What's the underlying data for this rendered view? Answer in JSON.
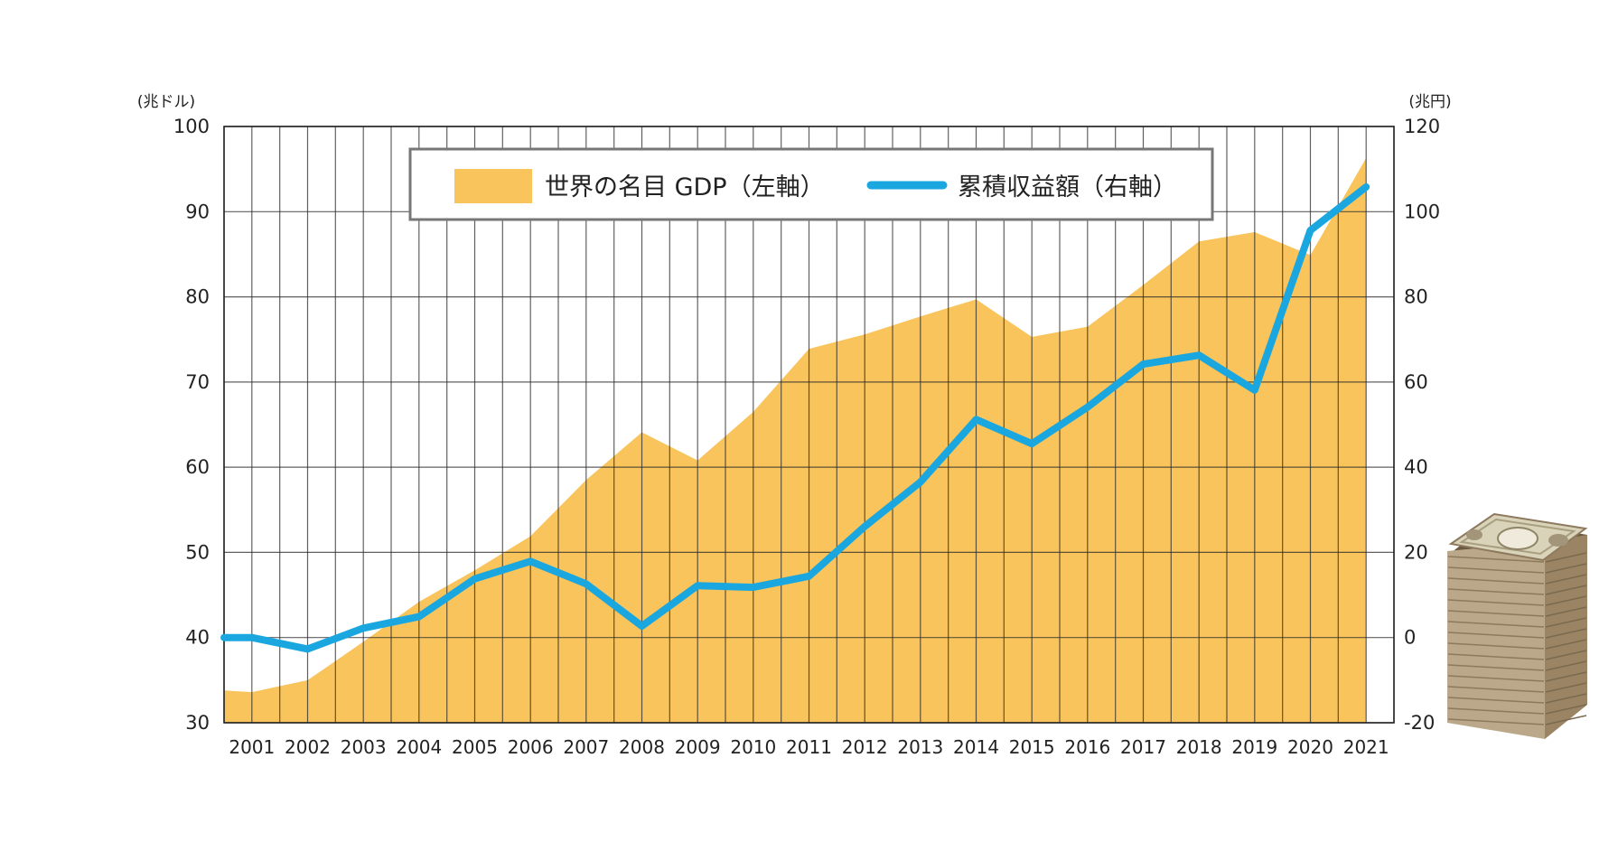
{
  "chart_data": {
    "type": "area+line",
    "x_categories": [
      "2001",
      "2002",
      "2003",
      "2004",
      "2005",
      "2006",
      "2007",
      "2008",
      "2009",
      "2010",
      "2011",
      "2012",
      "2013",
      "2014",
      "2015",
      "2016",
      "2017",
      "2018",
      "2019",
      "2020",
      "2021"
    ],
    "left_axis": {
      "unit_label": "(兆ドル)",
      "min": 30,
      "max": 100,
      "ticks": [
        30,
        40,
        50,
        60,
        70,
        80,
        90,
        100
      ]
    },
    "right_axis": {
      "unit_label": "(兆円)",
      "min": -20,
      "max": 120,
      "ticks": [
        -20,
        0,
        20,
        40,
        60,
        80,
        100,
        120
      ]
    },
    "grid": true,
    "legend": {
      "placement": "top-center",
      "gdp_label": "世界の名目 GDP（左軸）",
      "profit_label": "累積収益額（右軸）"
    },
    "series": [
      {
        "name": "世界の名目 GDP（左軸）",
        "type": "area",
        "axis": "left",
        "color": "#F8C45B",
        "points": [
          {
            "x": 2000.5,
            "y": 33.8
          },
          {
            "x": 2001.0,
            "y": 33.6
          },
          {
            "x": 2002.0,
            "y": 35.0
          },
          {
            "x": 2003.0,
            "y": 39.5
          },
          {
            "x": 2004.0,
            "y": 44.2
          },
          {
            "x": 2005.0,
            "y": 47.9
          },
          {
            "x": 2006.0,
            "y": 51.9
          },
          {
            "x": 2007.0,
            "y": 58.5
          },
          {
            "x": 2008.0,
            "y": 64.1
          },
          {
            "x": 2009.0,
            "y": 60.8
          },
          {
            "x": 2010.0,
            "y": 66.5
          },
          {
            "x": 2011.0,
            "y": 73.9
          },
          {
            "x": 2012.0,
            "y": 75.6
          },
          {
            "x": 2013.0,
            "y": 77.7
          },
          {
            "x": 2014.0,
            "y": 79.7
          },
          {
            "x": 2015.0,
            "y": 75.3
          },
          {
            "x": 2016.0,
            "y": 76.5
          },
          {
            "x": 2017.0,
            "y": 81.4
          },
          {
            "x": 2018.0,
            "y": 86.5
          },
          {
            "x": 2019.0,
            "y": 87.6
          },
          {
            "x": 2020.0,
            "y": 84.9
          },
          {
            "x": 2021.0,
            "y": 96.3
          }
        ]
      },
      {
        "name": "累積収益額（右軸）",
        "type": "line",
        "axis": "right",
        "color": "#1AA7E0",
        "points": [
          {
            "x": 2000.5,
            "y": 0
          },
          {
            "x": 2001.0,
            "y": 0
          },
          {
            "x": 2002.0,
            "y": -2.7
          },
          {
            "x": 2003.0,
            "y": 2.2
          },
          {
            "x": 2004.0,
            "y": 4.9
          },
          {
            "x": 2005.0,
            "y": 13.8
          },
          {
            "x": 2006.0,
            "y": 17.9
          },
          {
            "x": 2007.0,
            "y": 12.6
          },
          {
            "x": 2008.0,
            "y": 2.7
          },
          {
            "x": 2009.0,
            "y": 12.2
          },
          {
            "x": 2010.0,
            "y": 11.8
          },
          {
            "x": 2011.0,
            "y": 14.4
          },
          {
            "x": 2012.0,
            "y": 26.1
          },
          {
            "x": 2013.0,
            "y": 36.5
          },
          {
            "x": 2014.0,
            "y": 51.2
          },
          {
            "x": 2015.0,
            "y": 45.5
          },
          {
            "x": 2016.0,
            "y": 54.1
          },
          {
            "x": 2017.0,
            "y": 64.2
          },
          {
            "x": 2018.0,
            "y": 66.3
          },
          {
            "x": 2019.0,
            "y": 58.1
          },
          {
            "x": 2020.0,
            "y": 95.6
          },
          {
            "x": 2021.0,
            "y": 105.8
          }
        ]
      }
    ]
  },
  "decoration": {
    "icon": "banknote-stack-icon"
  }
}
